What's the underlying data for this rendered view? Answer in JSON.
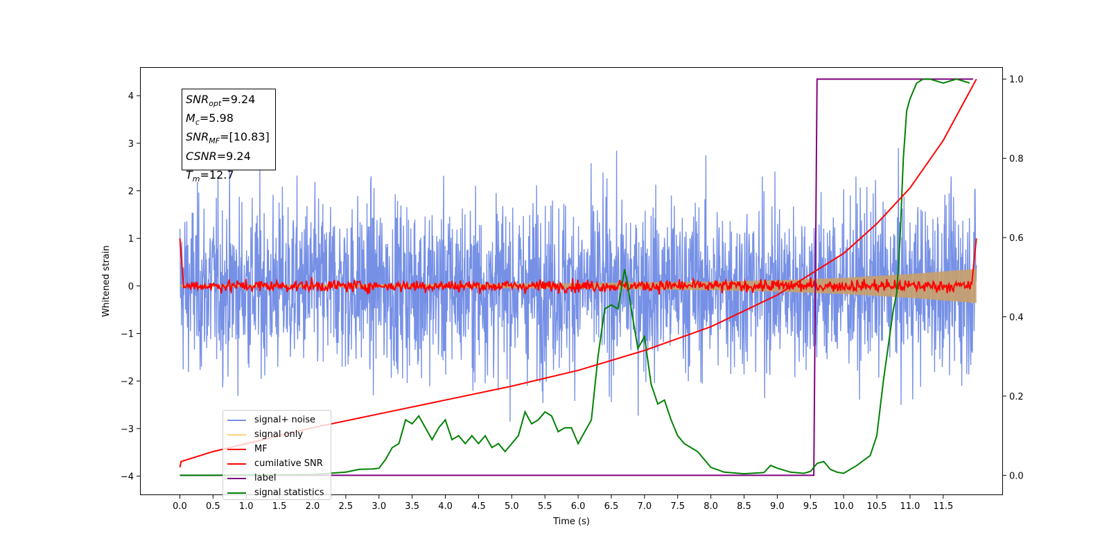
{
  "chart_data": {
    "type": "line",
    "xlabel": "Time (s)",
    "ylabel": "Whitened strain",
    "xlim": [
      -0.6,
      12.4
    ],
    "ylim": [
      -4.4,
      4.6
    ],
    "y2lim": [
      -0.05,
      1.03
    ],
    "x_ticks": [
      0.0,
      0.5,
      1.0,
      1.5,
      2.0,
      2.5,
      3.0,
      3.5,
      4.0,
      4.5,
      5.0,
      5.5,
      6.0,
      6.5,
      7.0,
      7.5,
      8.0,
      8.5,
      9.0,
      9.5,
      10.0,
      10.5,
      11.0,
      11.5
    ],
    "x_tick_labels": [
      "0.0",
      "0.5",
      "1.0",
      "1.5",
      "2.0",
      "2.5",
      "3.0",
      "3.5",
      "4.0",
      "4.5",
      "5.0",
      "5.5",
      "6.0",
      "6.5",
      "7.0",
      "7.5",
      "8.0",
      "8.5",
      "9.0",
      "9.5",
      "10.0",
      "10.5",
      "11.0",
      "11.5"
    ],
    "y_ticks": [
      -4,
      -3,
      -2,
      -1,
      0,
      1,
      2,
      3,
      4
    ],
    "y_tick_labels": [
      "−4",
      "−3",
      "−2",
      "−1",
      "0",
      "1",
      "2",
      "3",
      "4"
    ],
    "y2_ticks": [
      0.0,
      0.2,
      0.4,
      0.6,
      0.8,
      1.0
    ],
    "y2_tick_labels": [
      "0.0",
      "0.2",
      "0.4",
      "0.6",
      "0.8",
      "1.0"
    ],
    "grid": false,
    "legend_position": "lower-left",
    "annotation_box": {
      "position": "top-left",
      "lines": [
        {
          "sym": "SNR",
          "sub": "opt",
          "val": "=9.24"
        },
        {
          "sym": "M",
          "sub": "c",
          "val": "=5.98"
        },
        {
          "sym": "SNR",
          "sub": "MF",
          "val": "=[10.83]"
        },
        {
          "sym": "CSNR",
          "sub": "",
          "val": "=9.24"
        },
        {
          "sym": "T",
          "sub": "m",
          "val": "=12.7"
        }
      ]
    },
    "series": [
      {
        "name": "signal+ noise",
        "color": "#7690e6",
        "axis": "left",
        "kind": "noise-band",
        "x_range": [
          0.0,
          12.0
        ],
        "typical_range": [
          -1.5,
          1.5
        ],
        "extreme_range": [
          -3.9,
          3.9
        ]
      },
      {
        "name": "signal only",
        "color": "#ffd27a",
        "axis": "left",
        "kind": "growing-envelope",
        "x": [
          0.0,
          2.0,
          4.0,
          6.0,
          8.0,
          9.0,
          10.0,
          11.0,
          12.0
        ],
        "amplitude": [
          0.02,
          0.03,
          0.04,
          0.06,
          0.09,
          0.12,
          0.17,
          0.25,
          0.36
        ]
      },
      {
        "name": "MF",
        "color": "#ff0000",
        "axis": "left",
        "kind": "noisy-line",
        "x": [
          0.0,
          0.05,
          0.1,
          12.0,
          12.0
        ],
        "y": [
          1.0,
          0.1,
          0.0,
          0.0,
          1.0
        ],
        "fluctuation": 0.1
      },
      {
        "name": "cumilative SNR",
        "color": "#ff0000",
        "axis": "right",
        "x": [
          0.0,
          0.02,
          0.5,
          1.0,
          2.0,
          3.0,
          4.0,
          5.0,
          6.0,
          7.0,
          8.0,
          9.0,
          10.0,
          10.5,
          11.0,
          11.5,
          12.0
        ],
        "y": [
          0.02,
          0.035,
          0.06,
          0.08,
          0.12,
          0.155,
          0.19,
          0.225,
          0.265,
          0.315,
          0.375,
          0.455,
          0.56,
          0.635,
          0.725,
          0.845,
          1.0
        ]
      },
      {
        "name": "label",
        "color": "#800080",
        "axis": "right",
        "x": [
          0.0,
          9.55,
          9.6,
          11.95
        ],
        "y": [
          0.0,
          0.0,
          1.0,
          1.0
        ]
      },
      {
        "name": "signal statistics",
        "color": "#008000",
        "axis": "right",
        "x": [
          0.0,
          0.5,
          1.0,
          1.5,
          2.0,
          2.5,
          2.7,
          2.9,
          3.0,
          3.1,
          3.2,
          3.3,
          3.4,
          3.5,
          3.6,
          3.7,
          3.8,
          3.9,
          4.0,
          4.1,
          4.2,
          4.3,
          4.4,
          4.5,
          4.6,
          4.7,
          4.8,
          4.9,
          5.0,
          5.1,
          5.2,
          5.3,
          5.4,
          5.5,
          5.6,
          5.7,
          5.8,
          5.9,
          6.0,
          6.1,
          6.2,
          6.3,
          6.4,
          6.5,
          6.6,
          6.7,
          6.75,
          6.8,
          6.9,
          7.0,
          7.1,
          7.2,
          7.3,
          7.4,
          7.5,
          7.6,
          7.8,
          8.0,
          8.2,
          8.5,
          8.8,
          8.9,
          9.0,
          9.2,
          9.4,
          9.5,
          9.6,
          9.7,
          9.8,
          9.9,
          10.0,
          10.2,
          10.4,
          10.5,
          10.6,
          10.7,
          10.75,
          10.8,
          10.85,
          10.9,
          10.95,
          11.0,
          11.1,
          11.2,
          11.3,
          11.5,
          11.7,
          11.9
        ],
        "y": [
          0.0,
          0.0,
          0.001,
          0.001,
          0.002,
          0.008,
          0.015,
          0.016,
          0.018,
          0.04,
          0.07,
          0.08,
          0.14,
          0.13,
          0.15,
          0.12,
          0.09,
          0.12,
          0.14,
          0.09,
          0.1,
          0.08,
          0.1,
          0.08,
          0.1,
          0.07,
          0.08,
          0.06,
          0.08,
          0.1,
          0.16,
          0.13,
          0.14,
          0.16,
          0.15,
          0.11,
          0.12,
          0.12,
          0.08,
          0.11,
          0.14,
          0.3,
          0.42,
          0.43,
          0.42,
          0.52,
          0.48,
          0.42,
          0.32,
          0.35,
          0.23,
          0.18,
          0.19,
          0.14,
          0.1,
          0.08,
          0.06,
          0.02,
          0.008,
          0.004,
          0.007,
          0.025,
          0.018,
          0.008,
          0.005,
          0.01,
          0.03,
          0.035,
          0.015,
          0.008,
          0.005,
          0.025,
          0.05,
          0.1,
          0.24,
          0.36,
          0.42,
          0.46,
          0.6,
          0.8,
          0.92,
          0.95,
          0.99,
          1.0,
          1.0,
          0.99,
          1.0,
          0.99
        ]
      }
    ]
  }
}
